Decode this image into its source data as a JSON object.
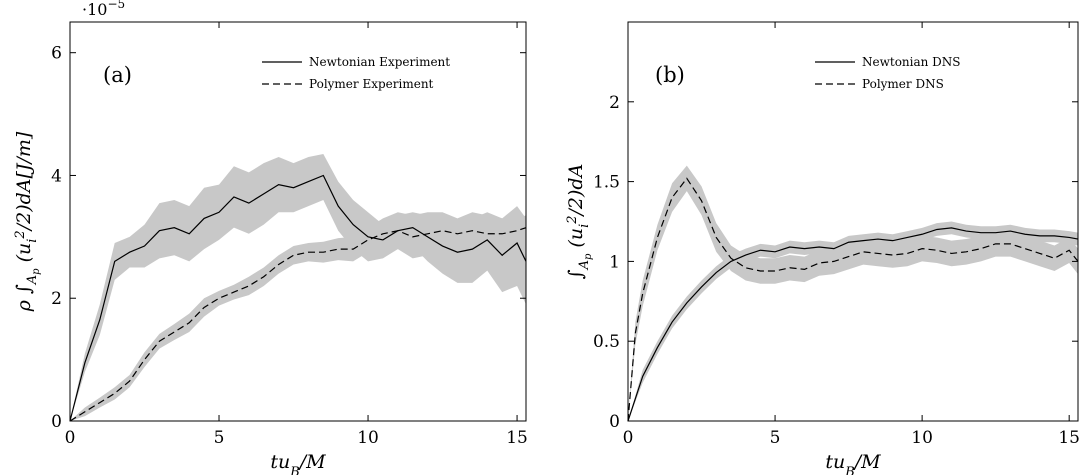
{
  "figure": {
    "background": "#ffffff",
    "band_color": "#c8c8c8",
    "line_color": "#000000"
  },
  "chart_data": [
    {
      "type": "line",
      "panel_label": "(a)",
      "xlabel": "tu_B/M",
      "ylabel": "ρ ∫_{A_p} (u_i^2/2) dA [J/m]",
      "y_exponent": "·10−5",
      "xlim": [
        0,
        15.3
      ],
      "ylim": [
        0,
        6.5
      ],
      "xticks": [
        0,
        5,
        10,
        15
      ],
      "yticks": [
        0,
        2,
        4,
        6
      ],
      "xtick_labels": [
        "0",
        "5",
        "10",
        "15"
      ],
      "ytick_labels": [
        "0",
        "2",
        "4",
        "6"
      ],
      "grid": false,
      "legend_position": "top-right",
      "series": [
        {
          "name": "Newtonian Experiment",
          "style": "solid",
          "x": [
            0,
            0.5,
            1.0,
            1.5,
            2.0,
            2.5,
            3.0,
            3.5,
            4.0,
            4.5,
            5.0,
            5.5,
            6.0,
            6.5,
            7.0,
            7.5,
            8.0,
            8.5,
            9.0,
            9.5,
            10.0,
            10.5,
            11.0,
            11.5,
            12.0,
            12.5,
            13.0,
            13.5,
            14.0,
            14.5,
            15.0,
            15.3
          ],
          "y": [
            0,
            0.95,
            1.65,
            2.6,
            2.75,
            2.85,
            3.1,
            3.15,
            3.05,
            3.3,
            3.4,
            3.65,
            3.55,
            3.7,
            3.85,
            3.8,
            3.9,
            4.0,
            3.5,
            3.2,
            3.0,
            2.95,
            3.1,
            3.15,
            3.0,
            2.85,
            2.75,
            2.8,
            2.95,
            2.7,
            2.9,
            2.6
          ],
          "band_upper": [
            0,
            1.1,
            1.9,
            2.9,
            3.0,
            3.2,
            3.55,
            3.6,
            3.5,
            3.8,
            3.85,
            4.15,
            4.05,
            4.2,
            4.3,
            4.2,
            4.3,
            4.35,
            3.9,
            3.6,
            3.4,
            3.2,
            3.35,
            3.4,
            3.35,
            3.3,
            3.2,
            3.3,
            3.4,
            3.3,
            3.5,
            3.3
          ],
          "band_lower": [
            0,
            0.8,
            1.4,
            2.3,
            2.5,
            2.5,
            2.65,
            2.7,
            2.6,
            2.8,
            2.95,
            3.15,
            3.05,
            3.2,
            3.4,
            3.4,
            3.5,
            3.6,
            3.1,
            2.8,
            2.6,
            2.65,
            2.8,
            2.85,
            2.6,
            2.4,
            2.25,
            2.25,
            2.45,
            2.1,
            2.2,
            1.9
          ]
        },
        {
          "name": "Polymer Experiment",
          "style": "dashed",
          "x": [
            0,
            0.5,
            1.0,
            1.5,
            2.0,
            2.5,
            3.0,
            3.5,
            4.0,
            4.5,
            5.0,
            5.5,
            6.0,
            6.5,
            7.0,
            7.5,
            8.0,
            8.5,
            9.0,
            9.5,
            10.0,
            10.5,
            11.0,
            11.5,
            12.0,
            12.5,
            13.0,
            13.5,
            14.0,
            14.5,
            15.0,
            15.3
          ],
          "y": [
            0,
            0.15,
            0.3,
            0.45,
            0.65,
            1.0,
            1.3,
            1.45,
            1.6,
            1.85,
            2.0,
            2.1,
            2.2,
            2.35,
            2.55,
            2.7,
            2.75,
            2.75,
            2.8,
            2.8,
            2.95,
            3.05,
            3.1,
            3.0,
            3.05,
            3.1,
            3.05,
            3.1,
            3.05,
            3.05,
            3.1,
            3.15
          ],
          "band_upper": [
            0,
            0.22,
            0.38,
            0.55,
            0.75,
            1.12,
            1.42,
            1.58,
            1.75,
            2.0,
            2.12,
            2.22,
            2.35,
            2.5,
            2.7,
            2.85,
            2.9,
            2.92,
            2.98,
            3.0,
            3.15,
            3.3,
            3.4,
            3.35,
            3.4,
            3.4,
            3.3,
            3.4,
            3.35,
            3.3,
            3.3,
            3.35
          ],
          "band_lower": [
            0,
            0.08,
            0.22,
            0.35,
            0.55,
            0.88,
            1.18,
            1.32,
            1.45,
            1.7,
            1.88,
            1.98,
            2.05,
            2.2,
            2.4,
            2.55,
            2.6,
            2.58,
            2.62,
            2.6,
            2.75,
            2.8,
            2.8,
            2.65,
            2.7,
            2.8,
            2.8,
            2.8,
            2.75,
            2.8,
            2.9,
            2.95
          ]
        }
      ]
    },
    {
      "type": "line",
      "panel_label": "(b)",
      "xlabel": "tu_B/M",
      "ylabel": "∫_{A_p} (u_i^2/2) dA",
      "xlim": [
        0,
        15.3
      ],
      "ylim": [
        0,
        2.5
      ],
      "xticks": [
        0,
        5,
        10,
        15
      ],
      "yticks": [
        0,
        0.5,
        1,
        1.5,
        2
      ],
      "xtick_labels": [
        "0",
        "5",
        "10",
        "15"
      ],
      "ytick_labels": [
        "0",
        "0.5",
        "1",
        "1.5",
        "2"
      ],
      "grid": false,
      "legend_position": "top-right",
      "series": [
        {
          "name": "Newtonian DNS",
          "style": "solid",
          "x": [
            0,
            0.5,
            1.0,
            1.5,
            2.0,
            2.5,
            3.0,
            3.5,
            4.0,
            4.5,
            5.0,
            5.5,
            6.0,
            6.5,
            7.0,
            7.5,
            8.0,
            8.5,
            9.0,
            9.5,
            10.0,
            10.5,
            11.0,
            11.5,
            12.0,
            12.5,
            13.0,
            13.5,
            14.0,
            14.5,
            15.0,
            15.3
          ],
          "y": [
            0,
            0.28,
            0.46,
            0.62,
            0.74,
            0.84,
            0.93,
            1.0,
            1.04,
            1.07,
            1.06,
            1.09,
            1.08,
            1.09,
            1.08,
            1.12,
            1.13,
            1.14,
            1.13,
            1.15,
            1.17,
            1.2,
            1.21,
            1.19,
            1.18,
            1.18,
            1.19,
            1.17,
            1.16,
            1.16,
            1.15,
            1.14
          ],
          "band_upper": [
            0,
            0.32,
            0.5,
            0.66,
            0.78,
            0.88,
            0.97,
            1.04,
            1.08,
            1.11,
            1.1,
            1.13,
            1.12,
            1.13,
            1.12,
            1.16,
            1.17,
            1.18,
            1.17,
            1.19,
            1.21,
            1.24,
            1.25,
            1.23,
            1.22,
            1.22,
            1.23,
            1.21,
            1.2,
            1.2,
            1.19,
            1.18
          ],
          "band_lower": [
            0,
            0.24,
            0.42,
            0.58,
            0.7,
            0.8,
            0.89,
            0.96,
            1.0,
            1.03,
            1.02,
            1.05,
            1.04,
            1.05,
            1.04,
            1.08,
            1.09,
            1.1,
            1.09,
            1.11,
            1.13,
            1.16,
            1.17,
            1.15,
            1.14,
            1.14,
            1.15,
            1.13,
            1.12,
            1.12,
            1.11,
            1.1
          ]
        },
        {
          "name": "Polymer DNS",
          "style": "dashed",
          "x": [
            0,
            0.25,
            0.5,
            1.0,
            1.5,
            2.0,
            2.5,
            3.0,
            3.5,
            4.0,
            4.5,
            5.0,
            5.5,
            6.0,
            6.5,
            7.0,
            7.5,
            8.0,
            8.5,
            9.0,
            9.5,
            10.0,
            10.5,
            11.0,
            11.5,
            12.0,
            12.5,
            13.0,
            13.5,
            14.0,
            14.5,
            15.0,
            15.3
          ],
          "y": [
            0,
            0.55,
            0.8,
            1.15,
            1.4,
            1.52,
            1.38,
            1.15,
            1.02,
            0.96,
            0.94,
            0.94,
            0.96,
            0.95,
            0.99,
            1.0,
            1.03,
            1.06,
            1.05,
            1.04,
            1.05,
            1.08,
            1.07,
            1.05,
            1.06,
            1.08,
            1.11,
            1.11,
            1.08,
            1.05,
            1.02,
            1.07,
            1.0
          ],
          "band_upper": [
            0,
            0.62,
            0.88,
            1.23,
            1.49,
            1.6,
            1.47,
            1.24,
            1.1,
            1.04,
            1.02,
            1.02,
            1.04,
            1.03,
            1.07,
            1.08,
            1.11,
            1.14,
            1.13,
            1.12,
            1.13,
            1.16,
            1.15,
            1.13,
            1.14,
            1.16,
            1.19,
            1.19,
            1.16,
            1.13,
            1.1,
            1.15,
            1.08
          ],
          "band_lower": [
            0,
            0.48,
            0.72,
            1.07,
            1.31,
            1.44,
            1.29,
            1.06,
            0.94,
            0.88,
            0.86,
            0.86,
            0.88,
            0.87,
            0.91,
            0.92,
            0.95,
            0.98,
            0.97,
            0.96,
            0.97,
            1.0,
            0.99,
            0.97,
            0.98,
            1.0,
            1.03,
            1.03,
            1.0,
            0.97,
            0.94,
            0.99,
            0.92
          ]
        }
      ]
    }
  ]
}
